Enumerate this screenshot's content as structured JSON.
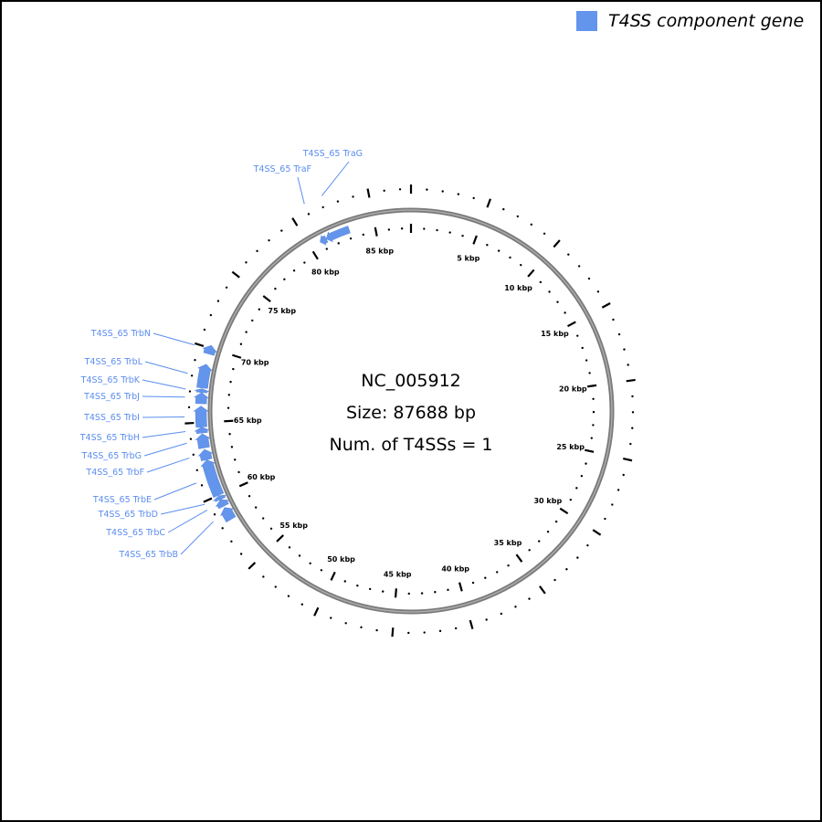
{
  "legend": {
    "label": "T4SS component gene",
    "color": "#6495ED"
  },
  "center": {
    "accession": "NC_005912",
    "size": "Size: 87688 bp",
    "count": "Num. of T4SSs = 1"
  },
  "genome_length_bp": 87688,
  "tick_labels": [
    "5 kbp",
    "10 kbp",
    "15 kbp",
    "20 kbp",
    "25 kbp",
    "30 kbp",
    "35 kbp",
    "40 kbp",
    "45 kbp",
    "50 kbp",
    "55 kbp",
    "60 kbp",
    "65 kbp",
    "70 kbp",
    "75 kbp",
    "80 kbp",
    "85 kbp"
  ],
  "colors": {
    "gene": "#6495ED",
    "label": "#5B8DEF",
    "backbone": "#808080"
  },
  "genes": [
    {
      "label": "T4SS_65 TraF",
      "start_kbp": 80.8,
      "end_kbp": 81.3,
      "strand": "-"
    },
    {
      "label": "T4SS_65 TraG",
      "start_kbp": 81.3,
      "end_kbp": 83.1,
      "strand": "-"
    },
    {
      "label": "T4SS_65 TrbN",
      "start_kbp": 69.6,
      "end_kbp": 70.2,
      "strand": "+"
    },
    {
      "label": "T4SS_65 TrbL",
      "start_kbp": 67.3,
      "end_kbp": 68.9,
      "strand": "+"
    },
    {
      "label": "T4SS_65 TrbK",
      "start_kbp": 67.0,
      "end_kbp": 67.25,
      "strand": "+"
    },
    {
      "label": "T4SS_65 TrbJ",
      "start_kbp": 66.25,
      "end_kbp": 67.0,
      "strand": "+"
    },
    {
      "label": "T4SS_65 TrbI",
      "start_kbp": 64.7,
      "end_kbp": 66.1,
      "strand": "+"
    },
    {
      "label": "T4SS_65 TrbH",
      "start_kbp": 64.3,
      "end_kbp": 64.7,
      "strand": "+"
    },
    {
      "label": "T4SS_65 TrbG",
      "start_kbp": 63.3,
      "end_kbp": 64.25,
      "strand": "+"
    },
    {
      "label": "T4SS_65 TrbF",
      "start_kbp": 62.5,
      "end_kbp": 63.2,
      "strand": "+"
    },
    {
      "label": "T4SS_65 TrbE",
      "start_kbp": 60.0,
      "end_kbp": 62.5,
      "strand": "+"
    },
    {
      "label": "T4SS_65 TrbD",
      "start_kbp": 59.7,
      "end_kbp": 59.97,
      "strand": "+"
    },
    {
      "label": "T4SS_65 TrbC",
      "start_kbp": 59.2,
      "end_kbp": 59.7,
      "strand": "+"
    },
    {
      "label": "T4SS_65 TrbB",
      "start_kbp": 58.2,
      "end_kbp": 59.1,
      "strand": "+"
    }
  ]
}
